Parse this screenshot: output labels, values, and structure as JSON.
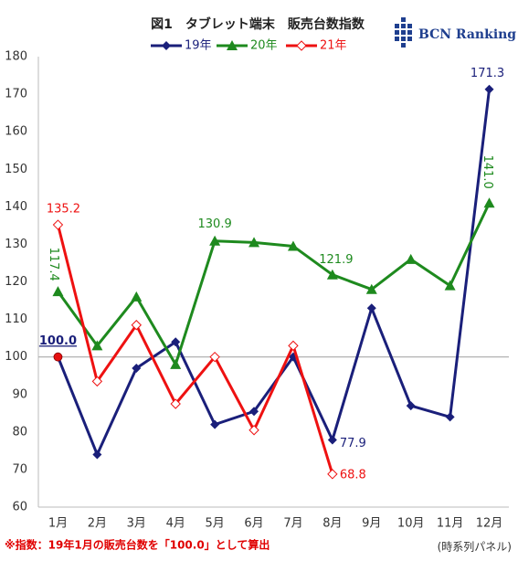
{
  "chart_data": {
    "type": "line",
    "title": "図1　タブレット端末　販売台数指数",
    "logo": "BCN Ranking",
    "footnote": "※指数：19年1月の販売台数を「100.0」として算出",
    "source": "(時系列パネル)",
    "categories": [
      "1月",
      "2月",
      "3月",
      "4月",
      "5月",
      "6月",
      "7月",
      "8月",
      "9月",
      "10月",
      "11月",
      "12月"
    ],
    "series": [
      {
        "name": "19年",
        "color": "#1a1f7a",
        "marker": "diamond",
        "values": [
          100,
          74,
          97,
          104,
          82,
          85.5,
          100,
          77.9,
          113,
          87,
          84,
          171.3
        ],
        "value_labels": [
          "100.0",
          null,
          null,
          null,
          null,
          null,
          null,
          "77.9",
          null,
          null,
          null,
          "171.3"
        ]
      },
      {
        "name": "20年",
        "color": "#1e8a1e",
        "marker": "triangle",
        "values": [
          117.4,
          103,
          116,
          98,
          130.9,
          130.5,
          129.5,
          121.9,
          118,
          126,
          119,
          141
        ],
        "value_labels": [
          "117.4",
          null,
          null,
          null,
          "130.9",
          null,
          null,
          "121.9",
          null,
          null,
          null,
          "141.0"
        ]
      },
      {
        "name": "21年",
        "color": "#ee1111",
        "marker": "open-diamond",
        "values": [
          135.2,
          93.5,
          108.5,
          87.5,
          100,
          80.5,
          103,
          68.8,
          null,
          null,
          null,
          null
        ],
        "value_labels": [
          "135.2",
          null,
          null,
          null,
          null,
          null,
          null,
          "68.8",
          null,
          null,
          null,
          null
        ]
      }
    ],
    "ylim": [
      60,
      180
    ],
    "yticks": [
      60,
      70,
      80,
      90,
      100,
      110,
      120,
      130,
      140,
      150,
      160,
      170,
      180
    ],
    "reference_line": 100,
    "legend": "top"
  }
}
